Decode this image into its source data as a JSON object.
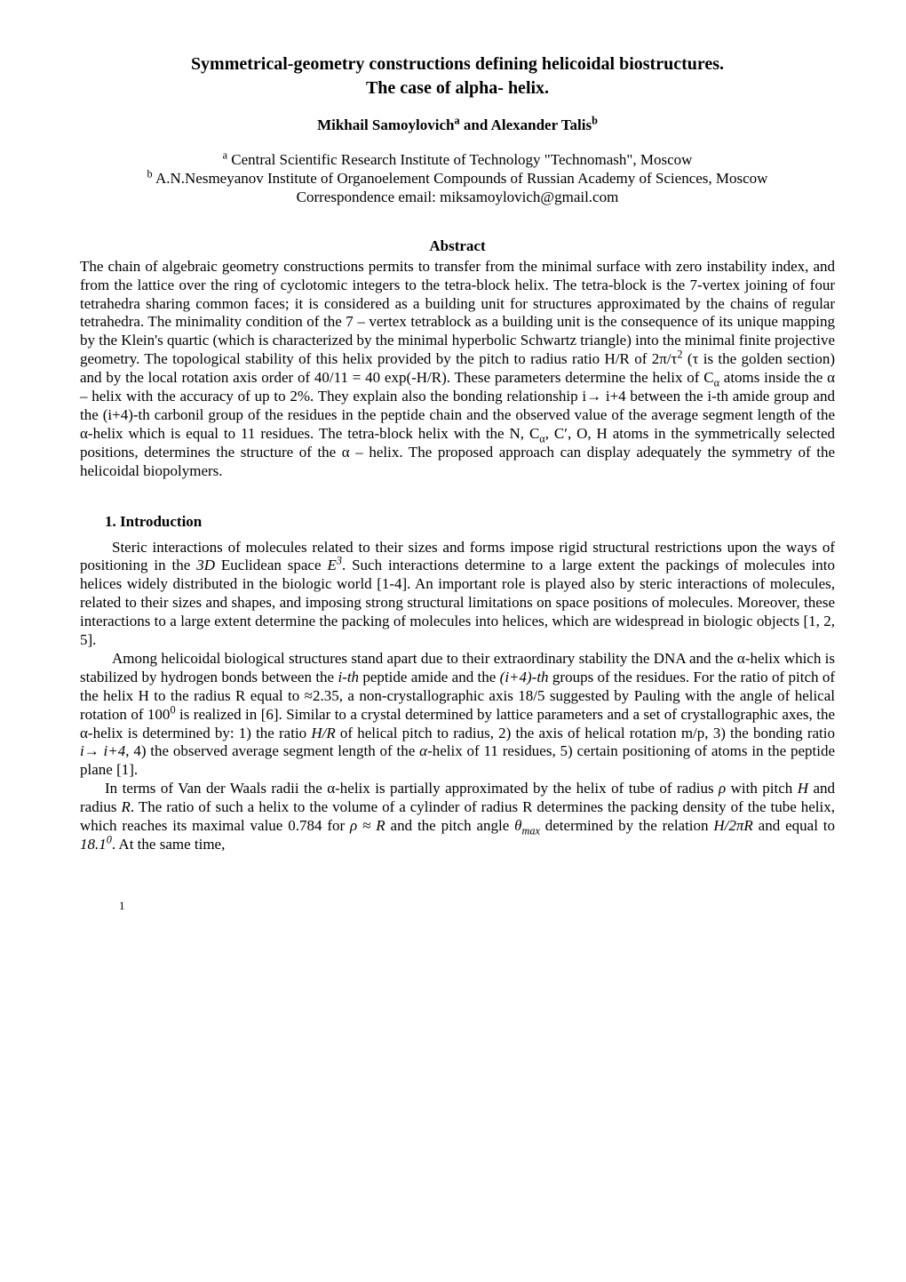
{
  "title_line1": "Symmetrical-geometry constructions defining helicoidal biostructures.",
  "title_line2": "The case of alpha- helix.",
  "authors_html": "Mikhail Samoylovich<sup>a</sup> and Alexander Talis<sup>b</sup>",
  "affil_a_html": "<sup>a</sup> Central Scientific Research Institute of Technology \"Technomash\", Moscow",
  "affil_b_html": "<sup>b</sup> A.N.Nesmeyanov Institute of Organoelement Compounds of Russian Academy of Sciences, Moscow",
  "correspondence": "Correspondence email: miksamoylovich@gmail.com",
  "abstract_heading": "Abstract",
  "abstract_html": "The chain of algebraic geometry constructions permits to transfer from the minimal surface with zero instability index, and from the lattice over the ring of cyclotomic integers to the tetra-block helix. The tetra-block is the 7-vertex joining of four tetrahedra sharing common faces; it is considered as a building unit for structures approximated by the chains of regular tetrahedra. The minimality condition of the 7 – vertex tetrablock as a building unit is the consequence of its unique mapping by the Klein's quartic (which is characterized by the minimal hyperbolic Schwartz triangle) into the minimal finite projective geometry. The topological stability of this helix provided by the pitch to radius ratio H/R of 2π/τ<sup>2</sup> (τ is the golden section) and by the local rotation axis order of 40/11 = 40 exp(-H/R). These parameters determine the helix of C<sub>α</sub> atoms inside the α – helix with the accuracy of up to 2%. They explain also the bonding relationship i→ i+4 between the i-th amide group and the (i+4)-th carbonil group of the residues in the peptide chain and the observed value of the average segment length of the α-helix which is equal to 11 residues. The tetra-block helix with the N, C<sub>α</sub>, C′, O, H atoms in the symmetrically selected positions, determines the structure of the α – helix. The proposed approach can display adequately the symmetry of the helicoidal biopolymers.",
  "section1_heading": "1.  Introduction",
  "intro_p1_html": "Steric interactions of molecules related to their sizes and forms impose rigid structural restrictions upon the ways of positioning in the <i>3D</i> Euclidean space <i>E<sup>3</sup></i>. Such interactions determine to a large extent the packings of molecules into helices widely distributed in the biologic world [1-4]. An important role is played also by steric interactions of molecules, related to their sizes and shapes, and imposing strong structural limitations on space positions of molecules. Moreover, these interactions to a large extent determine the packing of molecules into helices, which are widespread in biologic objects [1, 2, 5].",
  "intro_p2_html": "Among helicoidal biological structures stand apart due to their extraordinary stability the DNA and the α-helix which is stabilized by hydrogen bonds between the <i>i-th</i> peptide amide and the <i>(i+4)-th</i> groups of the residues. For the ratio of pitch of the helix H to the radius R equal to ≈2.35, a non-crystallographic axis 18/5 suggested by Pauling with the angle of helical rotation of 100<sup>0</sup> is realized in [6]. Similar to a crystal determined by lattice parameters and a set of crystallographic axes, the α-helix is determined by: 1) the ratio <i>H/R</i> of helical pitch to radius, 2) the axis of helical rotation m/p, 3) the bonding ratio <i>i→ i+4</i>, 4) the observed average segment length of the <i>α</i>-helix of 11 residues, 5) certain positioning of atoms in the peptide plane [1].",
  "intro_p3_html": "In terms of Van der Waals radii the α-helix is partially approximated by the helix of tube of radius <i>ρ</i> with pitch <i>H</i> and radius <i>R</i>. The ratio of such a helix to the volume of a cylinder of radius R determines the packing density of the tube helix, which reaches its maximal value 0.784 for <i>ρ ≈ R</i> and the pitch angle <i>θ<sub>max</sub></i> determined by the relation <i>H/2πR</i> and equal to <i>18.1<sup>0</sup></i>. At the same time,",
  "page_number": "1"
}
